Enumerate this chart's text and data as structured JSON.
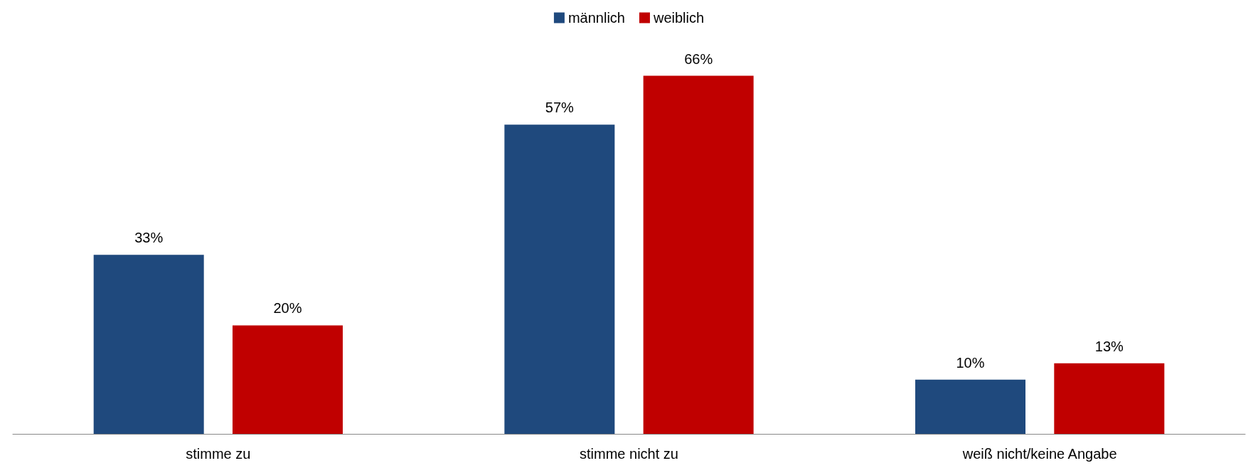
{
  "chart_data": {
    "type": "bar",
    "categories": [
      "stimme zu",
      "stimme nicht zu",
      "weiß nicht/keine Angabe"
    ],
    "series": [
      {
        "name": "männlich",
        "color": "#1f497d",
        "values": [
          33,
          57,
          10
        ],
        "value_labels": [
          "33%",
          "57%",
          "10%"
        ]
      },
      {
        "name": "weiblich",
        "color": "#c00000",
        "values": [
          20,
          66,
          13
        ],
        "value_labels": [
          "20%",
          "66%",
          "13%"
        ]
      }
    ],
    "legend": "top"
  }
}
